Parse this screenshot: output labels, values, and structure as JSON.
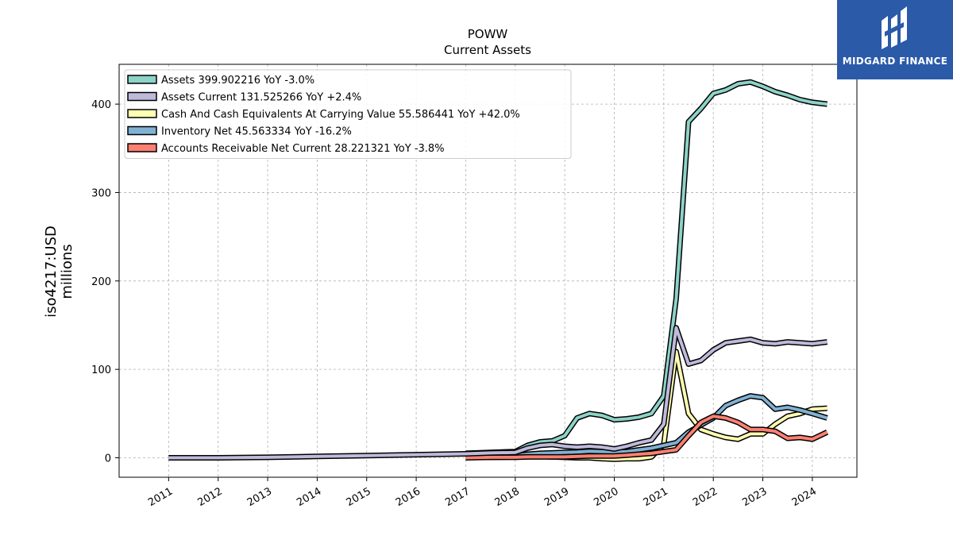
{
  "brand": {
    "name": "MIDGARD FINANCE",
    "bg_color": "#2a5aa8",
    "icon": "midgard-logo-icon"
  },
  "chart_data": {
    "type": "line",
    "title": "POWW",
    "subtitle": "Current  Assets",
    "ylabel_line1": "iso4217:USD",
    "ylabel_line2": "millions",
    "xlabel": "",
    "ylim": [
      -22,
      445
    ],
    "xlim": [
      2010.0,
      2024.9
    ],
    "yticks": [
      0,
      100,
      200,
      300,
      400
    ],
    "xticks": [
      2011,
      2012,
      2013,
      2014,
      2015,
      2016,
      2017,
      2018,
      2019,
      2020,
      2021,
      2022,
      2023,
      2024
    ],
    "grid": true,
    "legend_position": "top-left",
    "series": [
      {
        "name": "Assets  399.902216 YoY -3.0%",
        "color": "#8dd3c7",
        "x": [
          2017.0,
          2017.5,
          2018.0,
          2018.25,
          2018.5,
          2018.75,
          2019.0,
          2019.25,
          2019.5,
          2019.75,
          2020.0,
          2020.25,
          2020.5,
          2020.75,
          2021.0,
          2021.25,
          2021.5,
          2021.75,
          2022.0,
          2022.25,
          2022.5,
          2022.75,
          2023.0,
          2023.25,
          2023.5,
          2023.75,
          2024.0,
          2024.3
        ],
        "y": [
          5,
          6,
          7,
          14,
          18,
          19,
          25,
          45,
          50,
          48,
          43,
          44,
          46,
          50,
          70,
          180,
          380,
          395,
          412,
          416,
          423,
          425,
          420,
          414,
          410,
          405,
          402,
          400
        ]
      },
      {
        "name": "Assets Current  131.525266 YoY +2.4%",
        "color": "#bebada",
        "x": [
          2011.0,
          2012.0,
          2013.0,
          2014.0,
          2015.0,
          2016.0,
          2017.0,
          2017.5,
          2018.0,
          2018.25,
          2018.5,
          2018.75,
          2019.0,
          2019.25,
          2019.5,
          2019.75,
          2020.0,
          2020.25,
          2020.5,
          2020.75,
          2021.0,
          2021.25,
          2021.5,
          2021.75,
          2022.0,
          2022.25,
          2022.5,
          2022.75,
          2023.0,
          2023.25,
          2023.5,
          2023.75,
          2024.0,
          2024.3
        ],
        "y": [
          0,
          0,
          0.5,
          1.5,
          2.5,
          3.5,
          4.5,
          5.5,
          6,
          11,
          14,
          15,
          13,
          12,
          13,
          12,
          10,
          13,
          17,
          20,
          38,
          147,
          106,
          110,
          122,
          130,
          132,
          134,
          130,
          129,
          131,
          130,
          129,
          131
        ]
      },
      {
        "name": "Cash And Cash Equivalents At Carrying Value  55.586441 YoY +42.0%",
        "color": "#ffffb3",
        "x": [
          2017.0,
          2017.5,
          2018.0,
          2018.25,
          2018.5,
          2018.75,
          2019.0,
          2019.25,
          2019.5,
          2019.75,
          2020.0,
          2020.25,
          2020.5,
          2020.75,
          2021.0,
          2021.25,
          2021.5,
          2021.75,
          2022.0,
          2022.25,
          2022.5,
          2022.75,
          2023.0,
          2023.25,
          2023.5,
          2023.75,
          2024.0,
          2024.3
        ],
        "y": [
          0.5,
          0.5,
          1,
          2,
          1.5,
          1,
          0.5,
          0,
          0,
          -1,
          -1.5,
          -1,
          -1,
          1,
          15,
          120,
          50,
          32,
          27,
          23,
          21,
          27,
          27,
          38,
          47,
          50,
          55,
          56
        ]
      },
      {
        "name": "Inventory Net  45.563334 YoY -16.2%",
        "color": "#80b1d3",
        "x": [
          2017.0,
          2017.5,
          2018.0,
          2018.25,
          2018.5,
          2018.75,
          2019.0,
          2019.25,
          2019.5,
          2019.75,
          2020.0,
          2020.25,
          2020.5,
          2020.75,
          2021.0,
          2021.25,
          2021.5,
          2021.75,
          2022.0,
          2022.25,
          2022.5,
          2022.75,
          2023.0,
          2023.25,
          2023.5,
          2023.75,
          2024.0,
          2024.3
        ],
        "y": [
          1,
          1.5,
          2,
          4,
          5,
          5.5,
          6,
          6.5,
          7.5,
          7,
          6.5,
          7,
          9,
          11,
          14,
          17,
          29,
          37,
          45,
          59,
          65,
          70,
          68,
          55,
          57,
          54,
          50,
          45
        ]
      },
      {
        "name": "Accounts Receivable Net Current  28.221321 YoY -3.8%",
        "color": "#fb8072",
        "x": [
          2017.0,
          2017.5,
          2018.0,
          2018.25,
          2018.5,
          2018.75,
          2019.0,
          2019.25,
          2019.5,
          2019.75,
          2020.0,
          2020.25,
          2020.5,
          2020.75,
          2021.0,
          2021.25,
          2021.5,
          2021.75,
          2022.0,
          2022.25,
          2022.5,
          2022.75,
          2023.0,
          2023.25,
          2023.5,
          2023.75,
          2024.0,
          2024.3
        ],
        "y": [
          0,
          0.5,
          0.5,
          1,
          1,
          1,
          1,
          1.5,
          2,
          2,
          2,
          3,
          4,
          5,
          7,
          9,
          25,
          40,
          47,
          45,
          40,
          32,
          32,
          30,
          22,
          23,
          21,
          29
        ]
      }
    ]
  }
}
